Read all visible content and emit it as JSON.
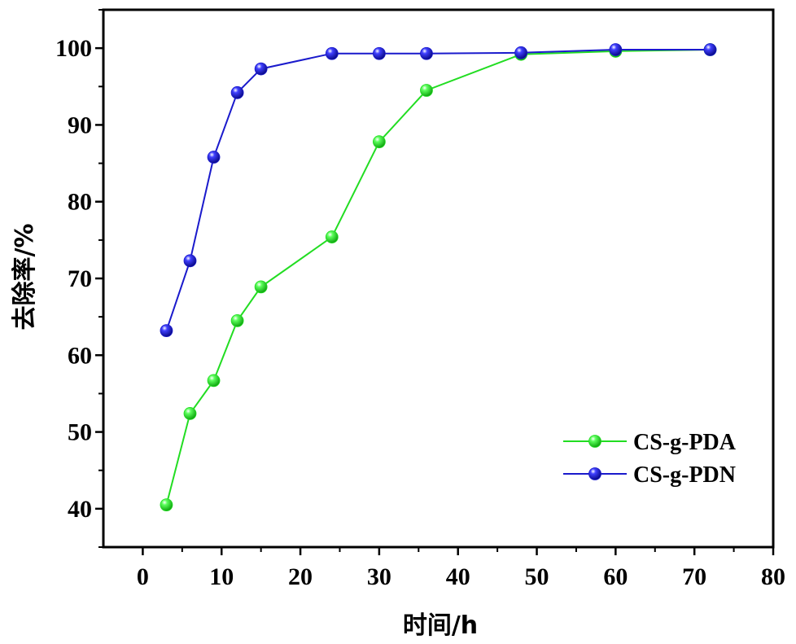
{
  "chart_data": {
    "type": "line",
    "title": "",
    "xlabel": "时间/h",
    "ylabel": "去除率/%",
    "xlim": [
      -5,
      80
    ],
    "ylim": [
      35,
      105
    ],
    "xticks": [
      0,
      10,
      20,
      30,
      40,
      50,
      60,
      70,
      80
    ],
    "yticks": [
      40,
      50,
      60,
      70,
      80,
      90,
      100
    ],
    "legend_position": "bottom-right",
    "series": [
      {
        "name": "CS-g-PDA",
        "color": "#22dd22",
        "marker_color": "#2ee82e",
        "x": [
          3,
          6,
          9,
          12,
          15,
          24,
          30,
          36,
          48,
          60,
          72
        ],
        "y": [
          40.5,
          52.4,
          56.7,
          64.5,
          68.9,
          75.4,
          87.8,
          94.5,
          99.2,
          99.6,
          99.8
        ]
      },
      {
        "name": "CS-g-PDN",
        "color": "#1a1acc",
        "marker_color": "#1f1fe0",
        "x": [
          3,
          6,
          9,
          12,
          15,
          24,
          30,
          36,
          48,
          60,
          72
        ],
        "y": [
          63.2,
          72.3,
          85.8,
          94.2,
          97.3,
          99.3,
          99.3,
          99.3,
          99.4,
          99.8,
          99.8
        ]
      }
    ]
  }
}
